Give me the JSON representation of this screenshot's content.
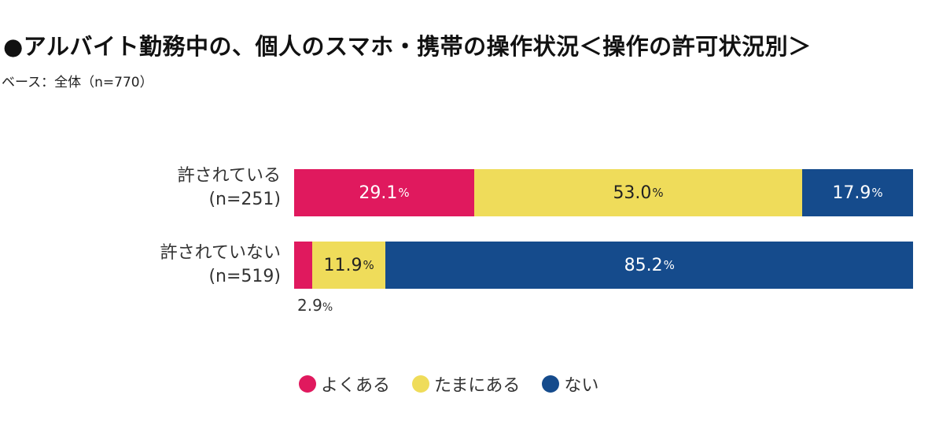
{
  "colors": {
    "often": "#e0195e",
    "sometimes": "#efdc5a",
    "never": "#154b8c"
  },
  "chart_data": {
    "type": "bar",
    "orientation": "horizontal",
    "stacked": true,
    "title": "●アルバイト勤務中の、個人のスマホ・携帯の操作状況＜操作の許可状況別＞",
    "subtitle": "ベース：全体（n=770）",
    "unit": "%",
    "categories": [
      {
        "name": "許されている",
        "n": "(n=251)"
      },
      {
        "name": "許されていない",
        "n": "(n=519)"
      }
    ],
    "series": [
      {
        "name": "よくある",
        "values": [
          29.1,
          2.9
        ]
      },
      {
        "name": "たまにある",
        "values": [
          53.0,
          11.9
        ]
      },
      {
        "name": "ない",
        "values": [
          17.9,
          85.2
        ]
      }
    ],
    "data_labels": [
      [
        "29.1",
        "53.0",
        "17.9"
      ],
      [
        "2.9",
        "11.9",
        "85.2"
      ]
    ],
    "percent_suffix": "%",
    "legend_position": "bottom"
  }
}
